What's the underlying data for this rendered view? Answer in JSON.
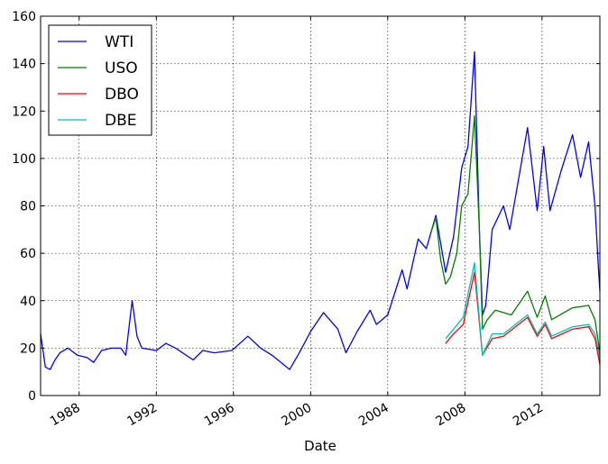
{
  "chart_data": {
    "type": "line",
    "title": "",
    "xlabel": "Date",
    "ylabel": "",
    "x_axis": "date",
    "xlim": [
      "1986-01-01",
      "2015-01-01"
    ],
    "ylim": [
      0,
      160
    ],
    "yticks": [
      0,
      20,
      40,
      60,
      80,
      100,
      120,
      140,
      160
    ],
    "xticks": [
      "1988",
      "1992",
      "1996",
      "2000",
      "2004",
      "2008",
      "2012"
    ],
    "grid": true,
    "legend_position": "top-left",
    "series": [
      {
        "name": "WTI",
        "color": "#0000ff",
        "points": [
          [
            "1986-01-01",
            26
          ],
          [
            "1986-04-01",
            12
          ],
          [
            "1986-07-01",
            11
          ],
          [
            "1986-10-01",
            15
          ],
          [
            "1987-01-01",
            18
          ],
          [
            "1987-06-01",
            20
          ],
          [
            "1987-12-01",
            17
          ],
          [
            "1988-06-01",
            16
          ],
          [
            "1988-10-01",
            14
          ],
          [
            "1989-03-01",
            19
          ],
          [
            "1989-09-01",
            20
          ],
          [
            "1990-03-01",
            20
          ],
          [
            "1990-06-01",
            17
          ],
          [
            "1990-10-01",
            40
          ],
          [
            "1991-01-01",
            25
          ],
          [
            "1991-04-01",
            20
          ],
          [
            "1992-01-01",
            19
          ],
          [
            "1992-07-01",
            22
          ],
          [
            "1993-01-01",
            20
          ],
          [
            "1993-12-01",
            15
          ],
          [
            "1994-06-01",
            19
          ],
          [
            "1995-01-01",
            18
          ],
          [
            "1995-12-01",
            19
          ],
          [
            "1996-10-01",
            25
          ],
          [
            "1997-06-01",
            20
          ],
          [
            "1998-01-01",
            17
          ],
          [
            "1998-12-01",
            11
          ],
          [
            "1999-06-01",
            18
          ],
          [
            "2000-01-01",
            27
          ],
          [
            "2000-09-01",
            35
          ],
          [
            "2001-06-01",
            28
          ],
          [
            "2001-11-01",
            18
          ],
          [
            "2002-06-01",
            27
          ],
          [
            "2003-02-01",
            36
          ],
          [
            "2003-06-01",
            30
          ],
          [
            "2004-01-01",
            34
          ],
          [
            "2004-10-01",
            53
          ],
          [
            "2005-01-01",
            45
          ],
          [
            "2005-08-01",
            66
          ],
          [
            "2006-01-01",
            62
          ],
          [
            "2006-07-01",
            76
          ],
          [
            "2007-01-01",
            52
          ],
          [
            "2007-06-01",
            67
          ],
          [
            "2007-11-01",
            96
          ],
          [
            "2008-03-01",
            105
          ],
          [
            "2008-07-01",
            145
          ],
          [
            "2008-10-01",
            70
          ],
          [
            "2008-12-01",
            34
          ],
          [
            "2009-02-01",
            38
          ],
          [
            "2009-06-01",
            70
          ],
          [
            "2010-01-01",
            80
          ],
          [
            "2010-05-01",
            70
          ],
          [
            "2011-04-01",
            113
          ],
          [
            "2011-10-01",
            78
          ],
          [
            "2012-02-01",
            105
          ],
          [
            "2012-06-01",
            78
          ],
          [
            "2013-01-01",
            95
          ],
          [
            "2013-08-01",
            110
          ],
          [
            "2014-01-01",
            92
          ],
          [
            "2014-06-01",
            107
          ],
          [
            "2014-10-01",
            80
          ],
          [
            "2014-12-01",
            55
          ],
          [
            "2015-01-01",
            44
          ]
        ]
      },
      {
        "name": "USO",
        "color": "#008000",
        "points": [
          [
            "2006-04-01",
            69
          ],
          [
            "2006-07-01",
            75
          ],
          [
            "2006-10-01",
            57
          ],
          [
            "2007-01-01",
            47
          ],
          [
            "2007-04-01",
            50
          ],
          [
            "2007-08-01",
            60
          ],
          [
            "2007-11-01",
            80
          ],
          [
            "2008-03-01",
            85
          ],
          [
            "2008-07-01",
            118
          ],
          [
            "2008-10-01",
            70
          ],
          [
            "2008-12-01",
            28
          ],
          [
            "2009-03-01",
            32
          ],
          [
            "2009-08-01",
            36
          ],
          [
            "2010-06-01",
            34
          ],
          [
            "2011-04-01",
            44
          ],
          [
            "2011-10-01",
            33
          ],
          [
            "2012-03-01",
            42
          ],
          [
            "2012-07-01",
            32
          ],
          [
            "2013-08-01",
            37
          ],
          [
            "2014-06-01",
            38
          ],
          [
            "2014-10-01",
            32
          ],
          [
            "2015-01-01",
            18
          ]
        ]
      },
      {
        "name": "DBO",
        "color": "#ff0000",
        "points": [
          [
            "2007-01-01",
            22
          ],
          [
            "2007-06-01",
            26
          ],
          [
            "2007-12-01",
            30
          ],
          [
            "2008-07-01",
            52
          ],
          [
            "2008-12-01",
            17
          ],
          [
            "2009-06-01",
            24
          ],
          [
            "2010-01-01",
            25
          ],
          [
            "2011-04-01",
            33
          ],
          [
            "2011-10-01",
            25
          ],
          [
            "2012-03-01",
            30
          ],
          [
            "2012-07-01",
            24
          ],
          [
            "2013-08-01",
            28
          ],
          [
            "2014-06-01",
            29
          ],
          [
            "2014-10-01",
            24
          ],
          [
            "2015-01-01",
            13
          ]
        ]
      },
      {
        "name": "DBE",
        "color": "#00bfbf",
        "points": [
          [
            "2007-01-01",
            24
          ],
          [
            "2007-06-01",
            28
          ],
          [
            "2007-12-01",
            33
          ],
          [
            "2008-07-01",
            56
          ],
          [
            "2008-12-01",
            17
          ],
          [
            "2009-06-01",
            26
          ],
          [
            "2010-01-01",
            26
          ],
          [
            "2011-04-01",
            34
          ],
          [
            "2011-10-01",
            26
          ],
          [
            "2012-03-01",
            31
          ],
          [
            "2012-07-01",
            25
          ],
          [
            "2013-08-01",
            29
          ],
          [
            "2014-06-01",
            30
          ],
          [
            "2014-10-01",
            26
          ],
          [
            "2015-01-01",
            16
          ]
        ]
      }
    ]
  }
}
